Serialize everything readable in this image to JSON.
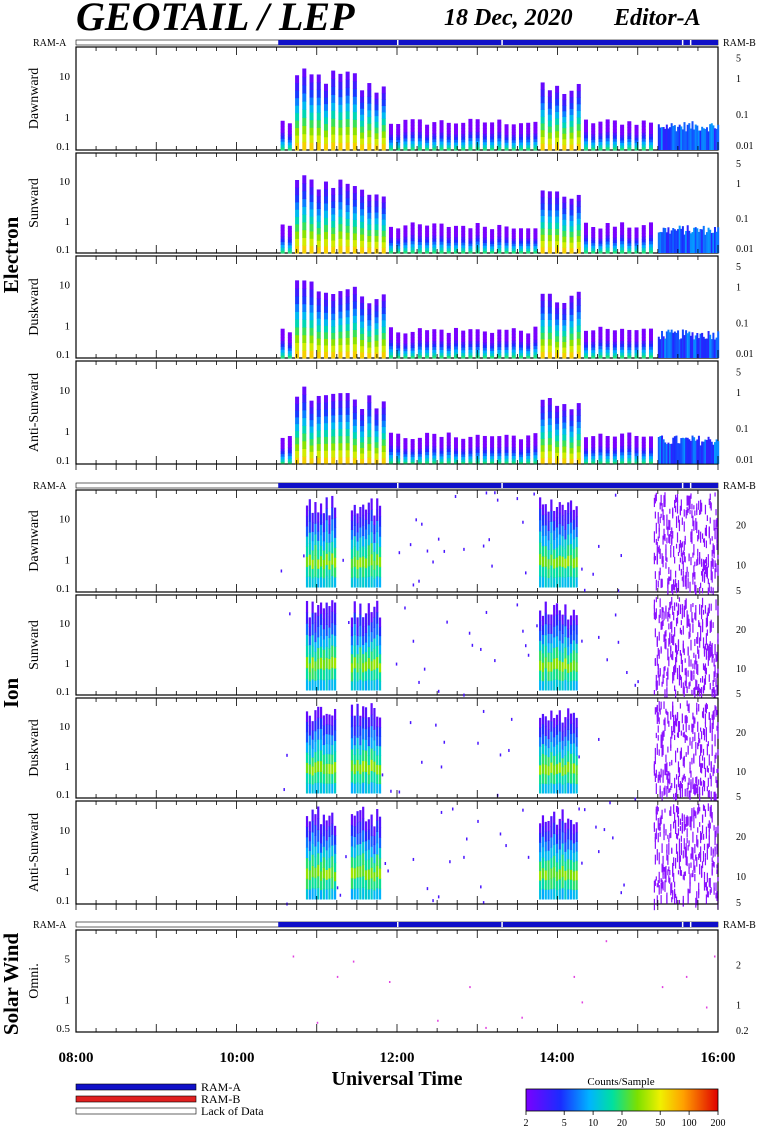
{
  "header": {
    "title": "GEOTAIL / LEP",
    "date": "18 Dec, 2020",
    "editor": "Editor-A"
  },
  "ram": {
    "left": "RAM-A",
    "right": "RAM-B"
  },
  "groups": {
    "electron": "Electron",
    "ion": "Ion",
    "solar_wind": "Solar Wind"
  },
  "panel_labels": {
    "dawn": "Dawnward",
    "sun": "Sunward",
    "dusk": "Duskward",
    "anti": "Anti-Sunward",
    "omni": "Omni."
  },
  "xaxis": {
    "label": "Universal Time",
    "ticks": [
      "08:00",
      "10:00",
      "12:00",
      "14:00",
      "16:00"
    ]
  },
  "legend": {
    "items": [
      "RAM-A",
      "RAM-B",
      "Lack of Data"
    ],
    "colors": {
      "ram_a": "#1010c8",
      "ram_b": "#e02020",
      "lack": "#ffffff"
    }
  },
  "colorbar": {
    "title": "Counts/Sample",
    "ticks": [
      "2",
      "5",
      "10",
      "20",
      "50",
      "100",
      "200"
    ]
  },
  "chart_data": {
    "type": "heatmap",
    "x_range_hours_ut": [
      8,
      16
    ],
    "x_tick_labels": [
      "08:00",
      "10:00",
      "12:00",
      "14:00",
      "16:00"
    ],
    "data_gap_until_ut": "10:30",
    "panels": [
      {
        "group": "Electron",
        "direction": "Dawnward",
        "ylabels_left": [
          "10",
          "1",
          "0.1"
        ],
        "ylabels_right": [
          "5",
          "1",
          "0.1",
          "0.01"
        ]
      },
      {
        "group": "Electron",
        "direction": "Sunward",
        "ylabels_left": [
          "10",
          "1",
          "0.1"
        ],
        "ylabels_right": [
          "5",
          "1",
          "0.1",
          "0.01"
        ]
      },
      {
        "group": "Electron",
        "direction": "Duskward",
        "ylabels_left": [
          "10",
          "1",
          "0.1"
        ],
        "ylabels_right": [
          "5",
          "1",
          "0.1",
          "0.01"
        ]
      },
      {
        "group": "Electron",
        "direction": "Anti-Sunward",
        "ylabels_left": [
          "10",
          "1",
          "0.1"
        ],
        "ylabels_right": [
          "5",
          "1",
          "0.1",
          "0.01"
        ]
      },
      {
        "group": "Ion",
        "direction": "Dawnward",
        "ylabels_left": [
          "10",
          "1",
          "0.1"
        ],
        "ylabels_right": [
          "20",
          "10",
          "5"
        ]
      },
      {
        "group": "Ion",
        "direction": "Sunward",
        "ylabels_left": [
          "10",
          "1",
          "0.1"
        ],
        "ylabels_right": [
          "20",
          "10",
          "5"
        ]
      },
      {
        "group": "Ion",
        "direction": "Duskward",
        "ylabels_left": [
          "10",
          "1",
          "0.1"
        ],
        "ylabels_right": [
          "20",
          "10",
          "5"
        ]
      },
      {
        "group": "Ion",
        "direction": "Anti-Sunward",
        "ylabels_left": [
          "10",
          "1",
          "0.1"
        ],
        "ylabels_right": [
          "20",
          "10",
          "5"
        ]
      },
      {
        "group": "Solar Wind",
        "direction": "Omni.",
        "ylabels_left": [
          "5",
          "1",
          "0.5"
        ],
        "ylabels_right": [
          "2",
          "1",
          "0.2"
        ]
      }
    ],
    "colorbar_scale": "log",
    "colorbar_range": [
      2,
      200
    ]
  }
}
